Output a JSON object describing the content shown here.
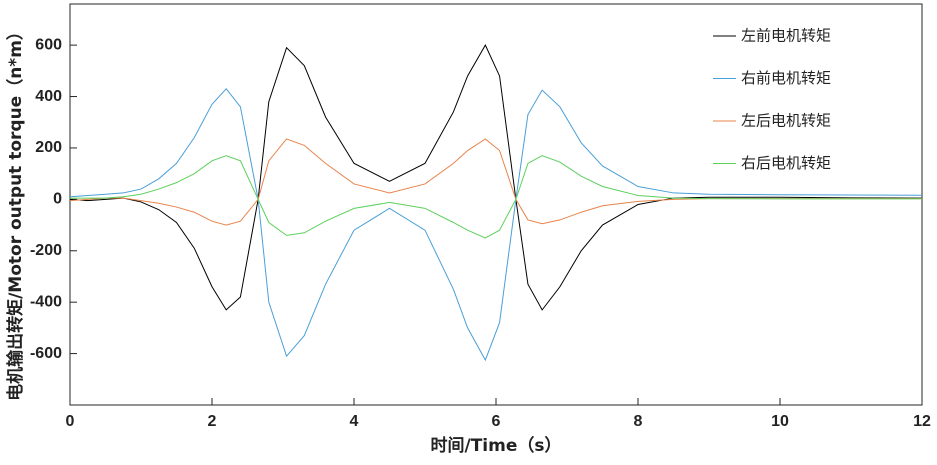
{
  "chart_data": {
    "type": "line",
    "x_label": "时间/Time（s）",
    "y_label": "电机输出转矩/Motor output torque（n*m）",
    "x": [
      0,
      0.25,
      0.5,
      0.75,
      1,
      1.25,
      1.5,
      1.75,
      2,
      2.2,
      2.4,
      2.65,
      2.8,
      3.05,
      3.3,
      3.6,
      4,
      4.5,
      5,
      5.4,
      5.6,
      5.85,
      6.05,
      6.28,
      6.45,
      6.65,
      6.9,
      7.2,
      7.5,
      8,
      8.5,
      9,
      10,
      11,
      12
    ],
    "series": [
      {
        "name": "左前电机转矩",
        "color": "#000000",
        "values": [
          0,
          -5,
          0,
          5,
          -10,
          -40,
          -90,
          -190,
          -340,
          -430,
          -380,
          0,
          380,
          590,
          520,
          320,
          140,
          70,
          140,
          340,
          480,
          600,
          480,
          0,
          -330,
          -430,
          -340,
          -200,
          -100,
          -20,
          5,
          8,
          8,
          6,
          5
        ]
      },
      {
        "name": "右前电机转矩",
        "color": "#4a9fd8",
        "values": [
          10,
          15,
          20,
          25,
          40,
          80,
          140,
          240,
          370,
          430,
          360,
          0,
          -400,
          -610,
          -530,
          -330,
          -120,
          -35,
          -120,
          -350,
          -500,
          -625,
          -480,
          0,
          330,
          425,
          360,
          220,
          130,
          50,
          25,
          20,
          18,
          17,
          16
        ]
      },
      {
        "name": "左后电机转矩",
        "color": "#e8834a",
        "values": [
          -5,
          0,
          5,
          5,
          -5,
          -15,
          -30,
          -50,
          -85,
          -100,
          -85,
          0,
          150,
          235,
          210,
          140,
          60,
          25,
          60,
          140,
          190,
          235,
          190,
          0,
          -80,
          -95,
          -80,
          -50,
          -25,
          -8,
          0,
          3,
          3,
          3,
          3
        ]
      },
      {
        "name": "右后电机转矩",
        "color": "#5dd05d",
        "values": [
          5,
          5,
          5,
          10,
          20,
          40,
          65,
          100,
          150,
          170,
          150,
          0,
          -90,
          -140,
          -130,
          -85,
          -35,
          -12,
          -35,
          -90,
          -120,
          -150,
          -120,
          0,
          140,
          170,
          145,
          90,
          50,
          15,
          5,
          3,
          2,
          2,
          2
        ]
      }
    ],
    "xlim": [
      0,
      12
    ],
    "xticks": [
      0,
      2,
      4,
      6,
      8,
      10,
      12
    ],
    "ylim": [
      -800,
      760
    ],
    "yticks": [
      -600,
      -400,
      -200,
      0,
      200,
      400,
      600
    ],
    "legend": "top-right"
  }
}
